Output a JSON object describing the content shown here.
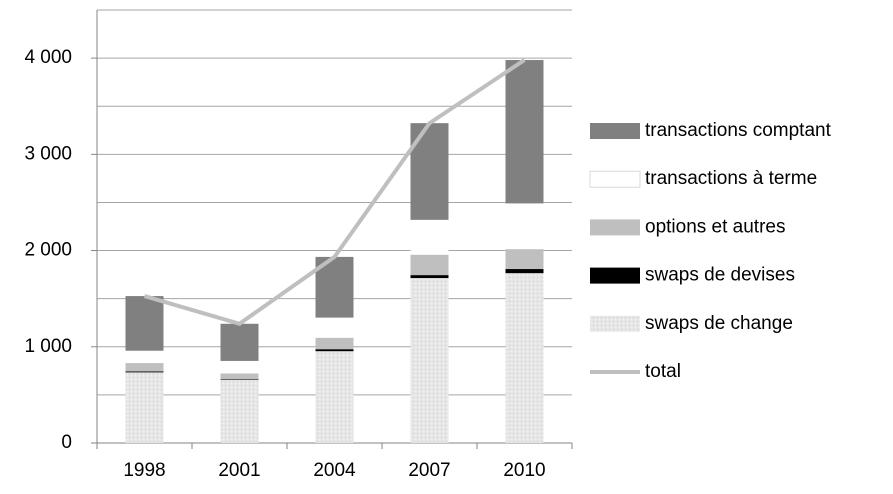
{
  "chart_data": {
    "type": "bar",
    "categories": [
      "1998",
      "2001",
      "2004",
      "2007",
      "2010"
    ],
    "stacked": true,
    "series": [
      {
        "name": "swaps de change",
        "color": "#e6e6e6",
        "values": [
          734,
          656,
          954,
          1714,
          1765
        ]
      },
      {
        "name": "swaps de devises",
        "color": "#000000",
        "values": [
          10,
          7,
          21,
          31,
          43
        ]
      },
      {
        "name": "options et autres",
        "color": "#bfbfbf",
        "values": [
          87,
          60,
          119,
          212,
          207
        ]
      },
      {
        "name": "transactions à terme",
        "color": "#ffffff",
        "values": [
          128,
          130,
          209,
          362,
          475
        ]
      },
      {
        "name": "transactions comptant",
        "color": "#808080",
        "values": [
          568,
          386,
          631,
          1005,
          1490
        ]
      },
      {
        "name": "total",
        "type": "line",
        "color": "#bfbfbf",
        "values": [
          1527,
          1239,
          1934,
          3324,
          3981
        ]
      }
    ],
    "ylim": [
      0,
      4500
    ],
    "yticks": [
      0,
      {
        "value": 1000,
        "label": "1 000"
      },
      {
        "value": 2000,
        "label": "2 000"
      },
      {
        "value": 3000,
        "label": "3 000"
      },
      {
        "value": 4000,
        "label": "4 000"
      }
    ],
    "minor_grid": [
      500,
      1500,
      2500,
      3500,
      4500
    ],
    "grid": true,
    "legend": "right"
  }
}
